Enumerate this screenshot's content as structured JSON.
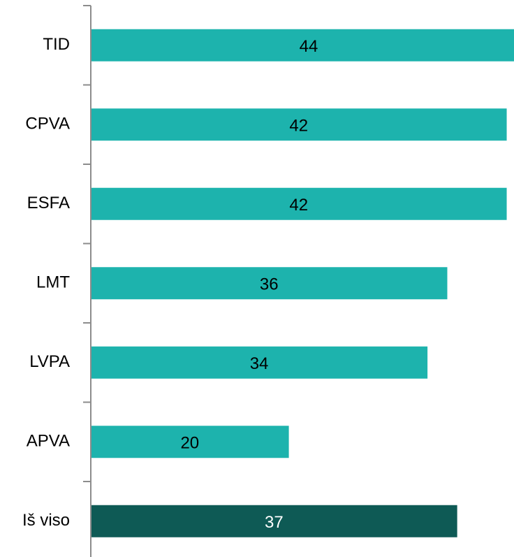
{
  "chart_data": {
    "type": "bar",
    "orientation": "horizontal",
    "categories": [
      "TID",
      "CPVA",
      "ESFA",
      "LMT",
      "LVPA",
      "APVA",
      "Iš viso"
    ],
    "values": [
      44,
      42,
      42,
      36,
      34,
      20,
      37
    ],
    "colors": [
      "#1db3ad",
      "#1db3ad",
      "#1db3ad",
      "#1db3ad",
      "#1db3ad",
      "#1db3ad",
      "#0e5a55"
    ]
  }
}
